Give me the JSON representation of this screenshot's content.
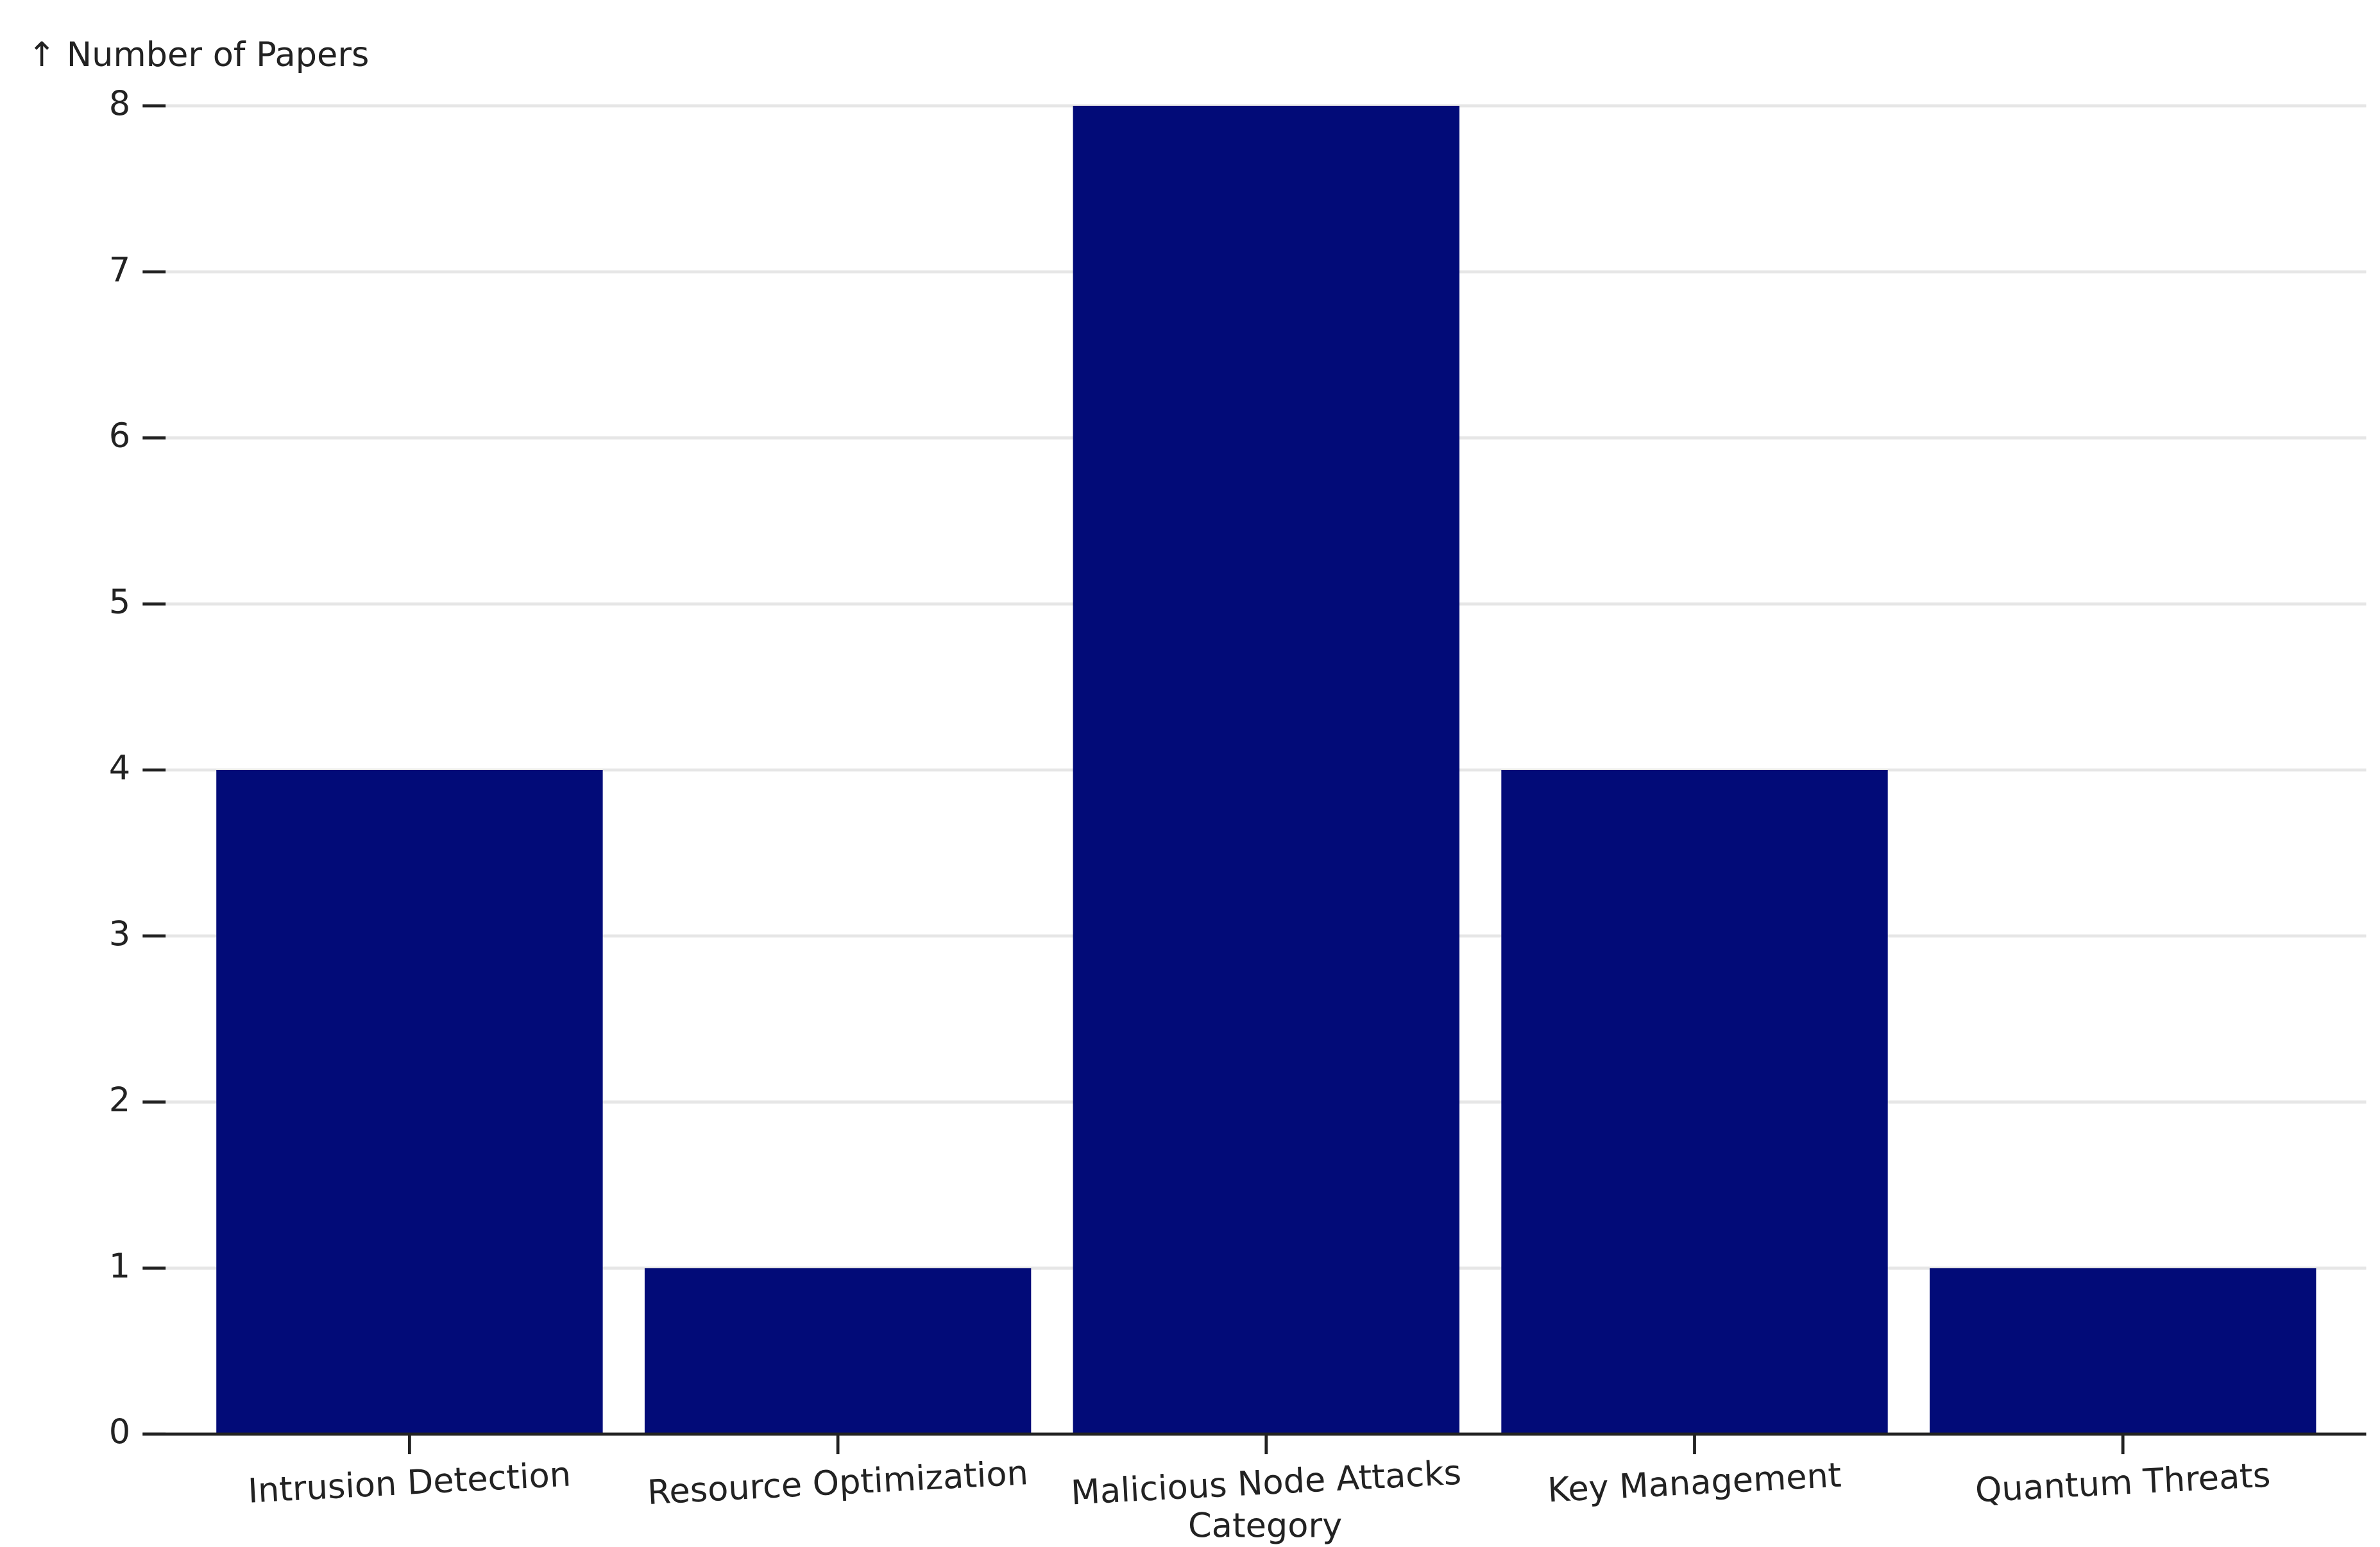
{
  "chart_data": {
    "type": "bar",
    "y_label": "↑ Number of Papers",
    "x_label": "Category",
    "categories": [
      "Intrusion Detection",
      "Resource Optimization",
      "Malicious Node Attacks",
      "Key Management",
      "Quantum Threats"
    ],
    "values": [
      4,
      1,
      8,
      4,
      1
    ],
    "color": "#020b78",
    "ylim": [
      0,
      8
    ],
    "yticks": [
      0,
      1,
      2,
      3,
      4,
      5,
      6,
      7,
      8
    ],
    "grid": true
  }
}
